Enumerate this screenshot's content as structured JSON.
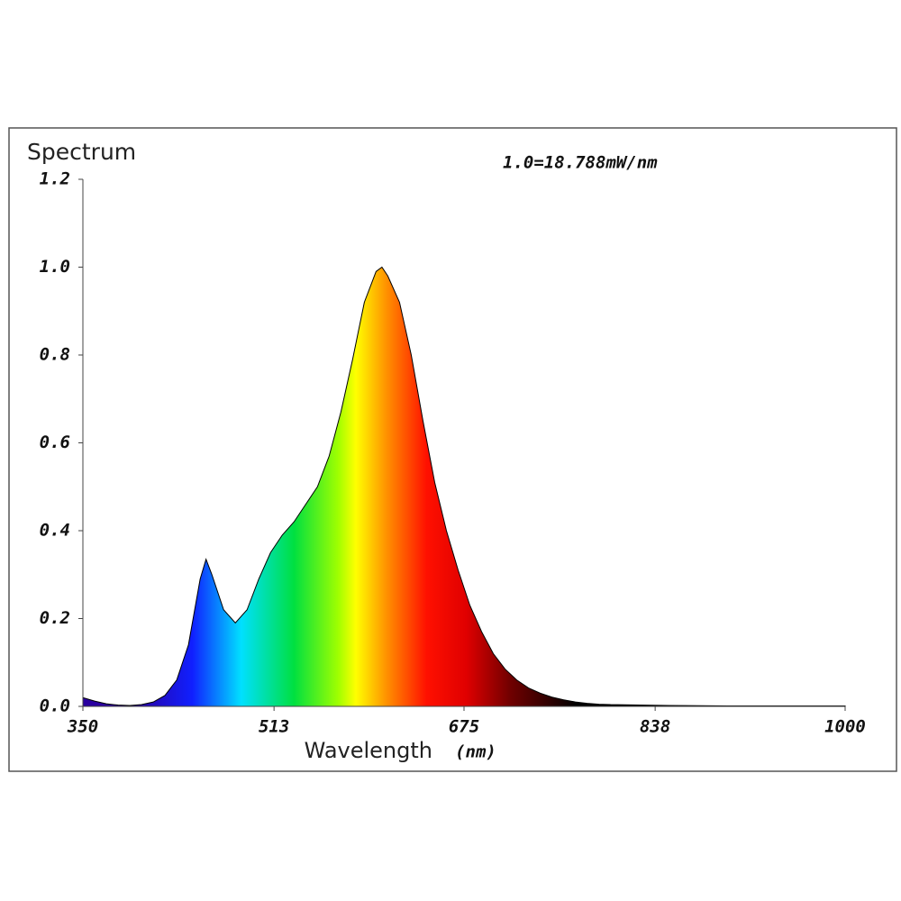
{
  "chart_data": {
    "type": "area",
    "title": "Spectrum",
    "annotation": "1.0=18.788mW/nm",
    "x_label": "Wavelength",
    "x_unit": "(nm)",
    "x": [
      350,
      360,
      370,
      380,
      390,
      400,
      410,
      420,
      430,
      440,
      450,
      455,
      460,
      470,
      480,
      490,
      500,
      510,
      520,
      530,
      540,
      550,
      560,
      570,
      580,
      590,
      600,
      605,
      610,
      620,
      630,
      640,
      650,
      660,
      670,
      680,
      690,
      700,
      710,
      720,
      730,
      740,
      750,
      760,
      770,
      780,
      790,
      800,
      850,
      900,
      950,
      1000
    ],
    "y": [
      0.02,
      0.012,
      0.006,
      0.003,
      0.002,
      0.004,
      0.01,
      0.025,
      0.06,
      0.14,
      0.29,
      0.335,
      0.3,
      0.22,
      0.19,
      0.22,
      0.29,
      0.35,
      0.39,
      0.42,
      0.46,
      0.5,
      0.57,
      0.67,
      0.79,
      0.92,
      0.99,
      1.0,
      0.98,
      0.92,
      0.8,
      0.65,
      0.51,
      0.4,
      0.31,
      0.23,
      0.17,
      0.12,
      0.085,
      0.06,
      0.042,
      0.03,
      0.021,
      0.015,
      0.01,
      0.007,
      0.005,
      0.004,
      0.002,
      0.001,
      0.001,
      0.001
    ],
    "xlim": [
      350,
      1000
    ],
    "xticks": [
      350,
      513,
      675,
      838,
      1000
    ],
    "ylim": [
      0,
      1.2
    ],
    "yticks": [
      {
        "value": 0,
        "label": "0.0"
      },
      0.2,
      0.4,
      0.6,
      0.8,
      {
        "value": 1,
        "label": "1.0"
      },
      1.2
    ],
    "grid": false
  }
}
